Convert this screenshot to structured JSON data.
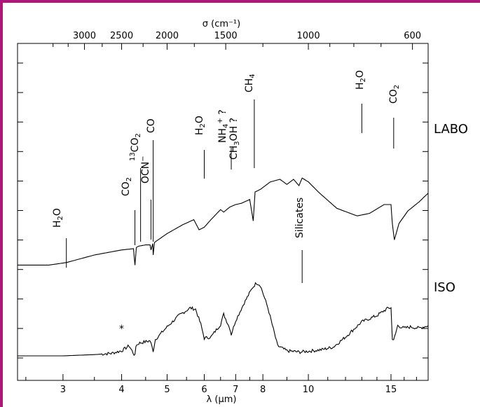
{
  "colors": {
    "frame": "#b0157a",
    "ink": "#000000",
    "background": "#ffffff"
  },
  "chart_data": {
    "type": "line",
    "xlabel": "λ (μm)",
    "x2label": "σ (cm⁻¹)",
    "x_scale": "log",
    "xlim": [
      2.4,
      18
    ],
    "x_ticks": [
      3,
      4,
      5,
      6,
      7,
      8,
      10,
      15
    ],
    "x_tick_labels": [
      "3",
      "4",
      "5",
      "6",
      "7",
      "8",
      "10",
      "15"
    ],
    "x2_ticks": [
      3000,
      2500,
      2000,
      1500,
      1000,
      600
    ],
    "x2_tick_labels": [
      "3000",
      "2500",
      "2000",
      "1500",
      "1000",
      "600"
    ],
    "x2_minor_ticks": [
      3500,
      3250,
      2750,
      2250,
      1750,
      1250,
      900,
      800,
      700
    ],
    "y_ticks_count": 11,
    "legend": "none",
    "grid": false,
    "series": [
      {
        "name": "LABO",
        "x": [
          2.4,
          2.8,
          3.05,
          3.5,
          4.0,
          4.24,
          4.27,
          4.3,
          4.35,
          4.5,
          4.6,
          4.62,
          4.66,
          4.67,
          4.7,
          5.0,
          5.4,
          5.7,
          5.85,
          6.0,
          6.2,
          6.5,
          6.6,
          6.8,
          7.0,
          7.2,
          7.5,
          7.63,
          7.7,
          7.9,
          8.3,
          8.7,
          9.0,
          9.3,
          9.55,
          9.7,
          10.0,
          10.5,
          11.5,
          12.7,
          13.5,
          14.5,
          15.0,
          15.1,
          15.25,
          15.6,
          16.3,
          17.2,
          18.0
        ],
        "y": [
          0.22,
          0.22,
          0.24,
          0.3,
          0.34,
          0.35,
          0.22,
          0.36,
          0.37,
          0.38,
          0.38,
          0.34,
          0.39,
          0.3,
          0.4,
          0.47,
          0.54,
          0.58,
          0.5,
          0.52,
          0.58,
          0.66,
          0.64,
          0.68,
          0.7,
          0.71,
          0.74,
          0.57,
          0.8,
          0.82,
          0.88,
          0.9,
          0.86,
          0.9,
          0.85,
          0.91,
          0.88,
          0.8,
          0.67,
          0.61,
          0.63,
          0.7,
          0.7,
          0.55,
          0.42,
          0.55,
          0.65,
          0.72,
          0.79
        ]
      },
      {
        "name": "ISO",
        "x": [
          2.4,
          3.0,
          3.5,
          3.8,
          4.0,
          4.15,
          4.27,
          4.29,
          4.35,
          4.6,
          4.67,
          4.72,
          5.0,
          5.3,
          5.6,
          5.75,
          5.9,
          6.0,
          6.2,
          6.5,
          6.6,
          6.8,
          6.85,
          7.0,
          7.3,
          7.6,
          7.75,
          7.9,
          8.2,
          8.6,
          9.0,
          9.6,
          10.2,
          10.7,
          11.3,
          12.0,
          13.0,
          14.0,
          14.8,
          15.0,
          15.1,
          15.2,
          15.5,
          16.0,
          16.5,
          17.2,
          18.0
        ],
        "y": [
          0.0,
          0.0,
          0.01,
          0.02,
          0.04,
          0.08,
          0.0,
          0.08,
          0.1,
          0.12,
          0.04,
          0.13,
          0.23,
          0.32,
          0.38,
          0.37,
          0.25,
          0.14,
          0.15,
          0.25,
          0.33,
          0.22,
          0.17,
          0.28,
          0.42,
          0.54,
          0.58,
          0.56,
          0.38,
          0.08,
          0.04,
          0.03,
          0.04,
          0.05,
          0.07,
          0.15,
          0.27,
          0.32,
          0.38,
          0.38,
          0.14,
          0.12,
          0.24,
          0.22,
          0.23,
          0.22,
          0.24
        ]
      }
    ],
    "annotations": [
      {
        "label": "H2O",
        "x": 3.05,
        "series": "ISO"
      },
      {
        "label": "CO2",
        "x": 4.27,
        "series": "LABO"
      },
      {
        "label": "13CO2",
        "x": 4.39,
        "series": "LABO"
      },
      {
        "label": "OCN⁻",
        "x": 4.62,
        "series": "LABO"
      },
      {
        "label": "CO",
        "x": 4.67,
        "series": "LABO"
      },
      {
        "label": "H2O",
        "x": 6.0,
        "series": "LABO"
      },
      {
        "label": "NH4+ ?",
        "x": 6.85,
        "series": "LABO"
      },
      {
        "label": "CH3OH ?",
        "x": 6.85,
        "series": "LABO"
      },
      {
        "label": "CH4",
        "x": 7.67,
        "series": "LABO"
      },
      {
        "label": "Silicates",
        "x": 9.7,
        "series": "ISO"
      },
      {
        "label": "H2O",
        "x": 13.0,
        "series": "LABO"
      },
      {
        "label": "CO2",
        "x": 15.2,
        "series": "LABO"
      },
      {
        "label": "*",
        "x": 4.1,
        "series": "ISO"
      }
    ]
  }
}
